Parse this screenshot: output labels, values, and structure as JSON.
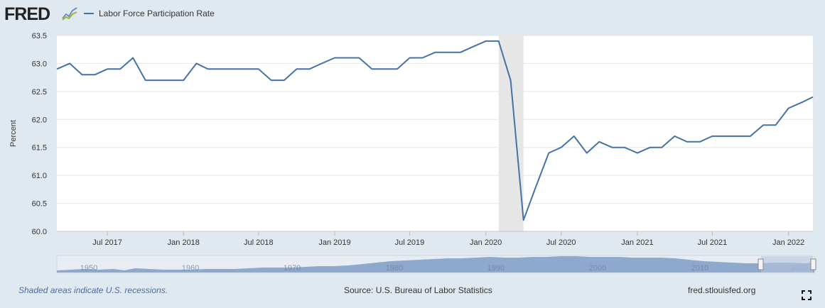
{
  "header": {
    "logo_text": "FRED",
    "logo_icon": "line-graph-icon",
    "series_name": "Labor Force Participation Rate",
    "series_color": "#4572a7"
  },
  "chart_data": {
    "type": "line",
    "title": "",
    "ylabel": "Percent",
    "xlabel": "",
    "ylim": [
      60.0,
      63.5
    ],
    "yticks": [
      "60.0",
      "60.5",
      "61.0",
      "61.5",
      "62.0",
      "62.5",
      "63.0",
      "63.5"
    ],
    "xticks": [
      {
        "label": "Jul 2017",
        "date": "2017-07"
      },
      {
        "label": "Jan 2018",
        "date": "2018-01"
      },
      {
        "label": "Jul 2018",
        "date": "2018-07"
      },
      {
        "label": "Jan 2019",
        "date": "2019-01"
      },
      {
        "label": "Jul 2019",
        "date": "2019-07"
      },
      {
        "label": "Jan 2020",
        "date": "2020-01"
      },
      {
        "label": "Jul 2020",
        "date": "2020-07"
      },
      {
        "label": "Jan 2021",
        "date": "2021-01"
      },
      {
        "label": "Jul 2021",
        "date": "2021-07"
      },
      {
        "label": "Jan 2022",
        "date": "2022-01"
      }
    ],
    "recession": {
      "start": "2020-02",
      "end": "2020-04"
    },
    "grid": true,
    "series": [
      {
        "name": "Labor Force Participation Rate",
        "color": "#4572a7",
        "x": [
          "2017-03",
          "2017-04",
          "2017-05",
          "2017-06",
          "2017-07",
          "2017-08",
          "2017-09",
          "2017-10",
          "2017-11",
          "2017-12",
          "2018-01",
          "2018-02",
          "2018-03",
          "2018-04",
          "2018-05",
          "2018-06",
          "2018-07",
          "2018-08",
          "2018-09",
          "2018-10",
          "2018-11",
          "2018-12",
          "2019-01",
          "2019-02",
          "2019-03",
          "2019-04",
          "2019-05",
          "2019-06",
          "2019-07",
          "2019-08",
          "2019-09",
          "2019-10",
          "2019-11",
          "2019-12",
          "2020-01",
          "2020-02",
          "2020-03",
          "2020-04",
          "2020-05",
          "2020-06",
          "2020-07",
          "2020-08",
          "2020-09",
          "2020-10",
          "2020-11",
          "2020-12",
          "2021-01",
          "2021-02",
          "2021-03",
          "2021-04",
          "2021-05",
          "2021-06",
          "2021-07",
          "2021-08",
          "2021-09",
          "2021-10",
          "2021-11",
          "2021-12",
          "2022-01",
          "2022-02",
          "2022-03"
        ],
        "values": [
          62.9,
          63.0,
          62.8,
          62.8,
          62.9,
          62.9,
          63.1,
          62.7,
          62.7,
          62.7,
          62.7,
          63.0,
          62.9,
          62.9,
          62.9,
          62.9,
          62.9,
          62.7,
          62.7,
          62.9,
          62.9,
          63.0,
          63.1,
          63.1,
          63.1,
          62.9,
          62.9,
          62.9,
          63.1,
          63.1,
          63.2,
          63.2,
          63.2,
          63.3,
          63.4,
          63.4,
          62.7,
          60.2,
          60.8,
          61.4,
          61.5,
          61.7,
          61.4,
          61.6,
          61.5,
          61.5,
          61.4,
          61.5,
          61.5,
          61.7,
          61.6,
          61.6,
          61.7,
          61.7,
          61.7,
          61.7,
          61.9,
          61.9,
          62.2,
          62.3,
          62.4
        ]
      }
    ]
  },
  "navigator": {
    "labels": [
      "1950",
      "1960",
      "1970",
      "1980",
      "1990",
      "2000",
      "2010",
      "2020"
    ]
  },
  "footer": {
    "recession_note": "Shaded areas indicate U.S. recessions.",
    "source": "Source: U.S. Bureau of Labor Statistics",
    "url": "fred.stlouisfed.org"
  }
}
